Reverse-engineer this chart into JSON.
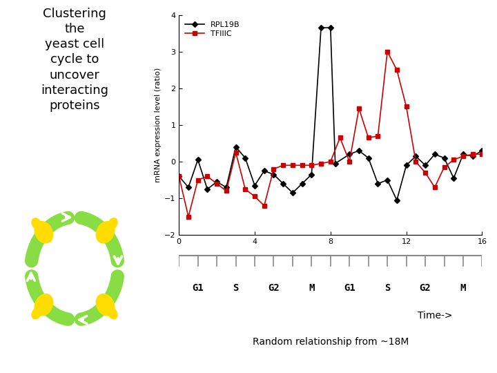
{
  "title_left": "Clustering\nthe\nyeast cell\ncycle to\nuncover\ninteracting\nproteins",
  "ylabel": "mRNA expression level (ratio)",
  "xlabel_phases": [
    "G1",
    "S",
    "G2",
    "M",
    "G1",
    "S",
    "G2",
    "M"
  ],
  "xlabel_phase_positions": [
    1.0,
    3.0,
    5.0,
    7.0,
    9.0,
    11.0,
    13.0,
    15.0
  ],
  "time_label": "Time->",
  "bottom_text": "Random relationship from ~18M",
  "xlim": [
    0,
    16
  ],
  "ylim": [
    -2,
    4
  ],
  "xticks": [
    0,
    4,
    8,
    12,
    16
  ],
  "yticks": [
    -2,
    -1,
    0,
    1,
    2,
    3,
    4
  ],
  "rpl19b_x": [
    0,
    0.5,
    1,
    1.5,
    2,
    2.5,
    3,
    3.5,
    4,
    4.5,
    5,
    5.5,
    6,
    6.5,
    7,
    7.5,
    8,
    8.25,
    9,
    9.5,
    10,
    10.5,
    11,
    11.5,
    12,
    12.5,
    13,
    13.5,
    14,
    14.5,
    15,
    15.5,
    16
  ],
  "rpl19b_y": [
    -0.4,
    -0.7,
    0.05,
    -0.75,
    -0.55,
    -0.7,
    0.4,
    0.1,
    -0.65,
    -0.25,
    -0.35,
    -0.6,
    -0.85,
    -0.6,
    -0.35,
    3.65,
    3.65,
    -0.05,
    0.2,
    0.3,
    0.1,
    -0.6,
    -0.5,
    -1.05,
    -0.1,
    0.15,
    -0.1,
    0.2,
    0.1,
    -0.45,
    0.2,
    0.15,
    0.3
  ],
  "tfiic_x": [
    0,
    0.5,
    1,
    1.5,
    2,
    2.5,
    3,
    3.5,
    4,
    4.5,
    5,
    5.5,
    6,
    6.5,
    7,
    7.5,
    8,
    8.5,
    9,
    9.5,
    10,
    10.5,
    11,
    11.5,
    12,
    12.5,
    13,
    13.5,
    14,
    14.5,
    15,
    15.5,
    16
  ],
  "tfiic_y": [
    -0.4,
    -1.5,
    -0.5,
    -0.4,
    -0.6,
    -0.8,
    0.25,
    -0.75,
    -0.95,
    -1.2,
    -0.2,
    -0.1,
    -0.1,
    -0.1,
    -0.1,
    -0.05,
    0.0,
    0.65,
    0.0,
    1.45,
    0.65,
    0.7,
    3.0,
    2.5,
    1.5,
    0.0,
    -0.3,
    -0.7,
    -0.15,
    0.05,
    0.15,
    0.2,
    0.2
  ],
  "rpl19b_color": "#000000",
  "tfiic_color": "#cc0000",
  "legend_rpl19b": "RPL19B",
  "legend_tfiic": "TFIIIC",
  "bg_color": "#ffffff",
  "plot_bg_color": "#ffffff"
}
